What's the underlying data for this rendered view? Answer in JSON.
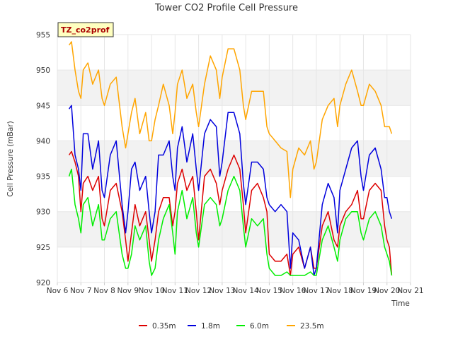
{
  "chart_data": {
    "type": "line",
    "title": "Tower CO2 Profile Cell Pressure",
    "xlabel": "Time",
    "ylabel": "Cell Pressure (mBar)",
    "badge": "TZ_co2prof",
    "xlim": [
      6,
      21
    ],
    "ylim": [
      920,
      955
    ],
    "x_ticks": [
      6,
      7,
      8,
      9,
      10,
      11,
      12,
      13,
      14,
      15,
      16,
      17,
      18,
      19,
      20,
      21
    ],
    "x_tick_labels": [
      "Nov 6",
      "Nov 7",
      "Nov 8",
      "Nov 9",
      "Nov 10",
      "Nov 11",
      "Nov 12",
      "Nov 13",
      "Nov 14",
      "Nov 15",
      "Nov 16",
      "Nov 17",
      "Nov 18",
      "Nov 19",
      "Nov 20",
      "Nov 21"
    ],
    "y_ticks": [
      920,
      925,
      930,
      935,
      940,
      945,
      950,
      955
    ],
    "y_tick_labels": [
      "920",
      "925",
      "930",
      "935",
      "940",
      "945",
      "950",
      "955"
    ],
    "grid": true,
    "legend_position": "bottom",
    "series": [
      {
        "name": "0.35m",
        "color": "#dd0000",
        "x": [
          6.5,
          6.6,
          6.75,
          6.9,
          7.0,
          7.1,
          7.3,
          7.5,
          7.75,
          7.9,
          8.0,
          8.25,
          8.5,
          8.75,
          8.9,
          9.0,
          9.15,
          9.3,
          9.5,
          9.75,
          9.9,
          10.0,
          10.15,
          10.3,
          10.5,
          10.75,
          10.9,
          11.0,
          11.1,
          11.3,
          11.5,
          11.75,
          11.9,
          12.0,
          12.25,
          12.5,
          12.75,
          12.9,
          13.0,
          13.25,
          13.5,
          13.75,
          13.9,
          14.0,
          14.25,
          14.5,
          14.75,
          14.9,
          15.0,
          15.25,
          15.5,
          15.75,
          15.9,
          16.0,
          16.25,
          16.5,
          16.75,
          16.9,
          17.0,
          17.25,
          17.5,
          17.75,
          17.9,
          18.0,
          18.25,
          18.5,
          18.75,
          18.9,
          19.0,
          19.25,
          19.5,
          19.75,
          19.9,
          20.0,
          20.1,
          20.2
        ],
        "y": [
          938,
          938.5,
          937,
          935,
          930,
          934,
          935,
          933,
          935,
          929,
          928,
          933,
          934,
          930,
          926,
          923,
          927,
          931,
          928,
          930,
          926,
          923,
          926,
          930,
          932,
          932,
          928,
          930,
          934,
          936,
          933,
          935,
          930,
          926,
          935,
          936,
          934,
          931,
          933,
          936,
          938,
          936,
          931,
          927,
          933,
          934,
          932,
          930,
          924,
          923,
          923,
          924,
          921,
          924,
          925,
          922,
          925,
          922,
          922,
          928,
          930,
          926,
          925,
          928,
          930,
          931,
          933,
          929,
          929,
          933,
          934,
          933,
          928,
          926,
          925,
          921
        ]
      },
      {
        "name": "1.8m",
        "color": "#0000dd",
        "x": [
          6.5,
          6.6,
          6.75,
          6.9,
          7.0,
          7.1,
          7.3,
          7.5,
          7.75,
          7.9,
          8.0,
          8.25,
          8.5,
          8.75,
          8.9,
          9.0,
          9.15,
          9.3,
          9.5,
          9.75,
          9.9,
          10.0,
          10.15,
          10.3,
          10.5,
          10.75,
          10.9,
          11.0,
          11.1,
          11.3,
          11.5,
          11.75,
          11.9,
          12.0,
          12.25,
          12.5,
          12.75,
          12.9,
          13.0,
          13.25,
          13.5,
          13.75,
          13.9,
          14.0,
          14.25,
          14.5,
          14.75,
          14.9,
          15.0,
          15.25,
          15.5,
          15.75,
          15.9,
          16.0,
          16.25,
          16.5,
          16.75,
          16.9,
          17.0,
          17.25,
          17.5,
          17.75,
          17.9,
          18.0,
          18.25,
          18.5,
          18.75,
          18.9,
          19.0,
          19.25,
          19.5,
          19.75,
          19.9,
          20.0,
          20.1,
          20.2
        ],
        "y": [
          944.5,
          945,
          938,
          936,
          933,
          941,
          941,
          936,
          940,
          933,
          932,
          938,
          940,
          931,
          927,
          930,
          936,
          937,
          933,
          935,
          930,
          927,
          930,
          938,
          938,
          940,
          935,
          933,
          939,
          942,
          937,
          941,
          936,
          933,
          941,
          943,
          942,
          935,
          937,
          944,
          944,
          941,
          934,
          931,
          937,
          937,
          936,
          932,
          931,
          930,
          931,
          930,
          922,
          927,
          926,
          922,
          925,
          921,
          922,
          931,
          934,
          932,
          927,
          933,
          936,
          939,
          940,
          935,
          933,
          938,
          939,
          936,
          932,
          932,
          930,
          929
        ]
      },
      {
        "name": "6.0m",
        "color": "#00ee00",
        "x": [
          6.5,
          6.6,
          6.75,
          6.9,
          7.0,
          7.1,
          7.3,
          7.5,
          7.75,
          7.9,
          8.0,
          8.25,
          8.5,
          8.75,
          8.9,
          9.0,
          9.15,
          9.3,
          9.5,
          9.75,
          9.9,
          10.0,
          10.15,
          10.3,
          10.5,
          10.75,
          10.9,
          11.0,
          11.1,
          11.3,
          11.5,
          11.75,
          11.9,
          12.0,
          12.25,
          12.5,
          12.75,
          12.9,
          13.0,
          13.25,
          13.5,
          13.75,
          13.9,
          14.0,
          14.25,
          14.5,
          14.75,
          14.9,
          15.0,
          15.25,
          15.5,
          15.75,
          15.9,
          16.0,
          16.25,
          16.5,
          16.75,
          16.9,
          17.0,
          17.25,
          17.5,
          17.75,
          17.9,
          18.0,
          18.25,
          18.5,
          18.75,
          18.9,
          19.0,
          19.25,
          19.5,
          19.75,
          19.9,
          20.0,
          20.1,
          20.2
        ],
        "y": [
          935,
          936,
          931,
          929,
          927,
          931,
          932,
          928,
          931,
          926,
          926,
          929,
          930,
          924,
          922,
          922,
          924,
          928,
          926,
          928,
          923,
          921,
          922,
          926,
          929,
          931,
          927,
          924,
          930,
          933,
          929,
          932,
          927,
          925,
          931,
          932,
          931,
          928,
          929,
          933,
          935,
          933,
          928,
          925,
          929,
          928,
          929,
          924,
          922,
          921,
          921,
          921.5,
          921,
          921,
          921,
          921,
          921.5,
          921,
          921,
          926,
          928,
          925,
          923,
          926,
          929,
          930,
          930,
          927,
          926,
          929,
          930,
          928,
          925,
          924,
          923,
          921
        ]
      },
      {
        "name": "23.5m",
        "color": "#ffa500",
        "x": [
          6.5,
          6.6,
          6.75,
          6.9,
          7.0,
          7.1,
          7.3,
          7.5,
          7.75,
          7.9,
          8.0,
          8.25,
          8.5,
          8.75,
          8.9,
          9.0,
          9.15,
          9.3,
          9.5,
          9.75,
          9.9,
          10.0,
          10.15,
          10.3,
          10.5,
          10.75,
          10.9,
          11.0,
          11.1,
          11.3,
          11.5,
          11.75,
          11.9,
          12.0,
          12.25,
          12.5,
          12.75,
          12.9,
          13.0,
          13.25,
          13.5,
          13.75,
          13.9,
          14.0,
          14.25,
          14.5,
          14.75,
          14.9,
          15.0,
          15.25,
          15.5,
          15.75,
          15.9,
          16.0,
          16.25,
          16.5,
          16.75,
          16.9,
          17.0,
          17.25,
          17.5,
          17.75,
          17.9,
          18.0,
          18.25,
          18.5,
          18.75,
          18.9,
          19.0,
          19.25,
          19.5,
          19.75,
          19.9,
          20.0,
          20.1,
          20.2
        ],
        "y": [
          953.5,
          954,
          950,
          947,
          946,
          950,
          951,
          948,
          950,
          946,
          945,
          948,
          949,
          942,
          939,
          941,
          944,
          946,
          941,
          944,
          940,
          940,
          943,
          945,
          948,
          945,
          941,
          944,
          948,
          950,
          946,
          948,
          944,
          942,
          948,
          952,
          950,
          946,
          949,
          953,
          953,
          950,
          945,
          943,
          947,
          947,
          947,
          942,
          941,
          940,
          939,
          938.5,
          932,
          936,
          939,
          938,
          940,
          936,
          937,
          943,
          945,
          946,
          942,
          945,
          948,
          950,
          947,
          945,
          945,
          948,
          947,
          945,
          942,
          942,
          942,
          941
        ]
      }
    ]
  }
}
